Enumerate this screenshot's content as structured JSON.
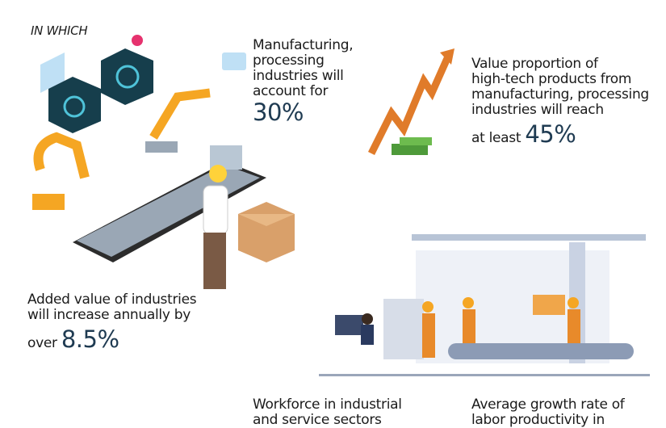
{
  "heading": "IN WHICH",
  "items": [
    {
      "lines": [
        "Manufacturing,",
        "processing",
        "industries will",
        "account for"
      ],
      "prefix": "",
      "value": "30%"
    },
    {
      "lines": [
        "Value proportion of",
        "high-tech products from",
        "manufacturing, processing",
        "industries will reach"
      ],
      "prefix": "at least",
      "value": "45%"
    },
    {
      "lines": [
        "Added value of industries",
        "will increase annually by"
      ],
      "prefix": "over",
      "value": "8.5%"
    },
    {
      "lines": [
        "Workforce in industrial",
        "and service sectors"
      ],
      "prefix": "",
      "value": ""
    },
    {
      "lines": [
        "Average growth rate of",
        "labor productivity in"
      ],
      "prefix": "",
      "value": ""
    }
  ],
  "colors": {
    "text": "#1b1b1b",
    "value": "#1f3b52",
    "robot": "#f5a623",
    "arrow": "#e07b2a",
    "panel": "#1c4a5a"
  }
}
